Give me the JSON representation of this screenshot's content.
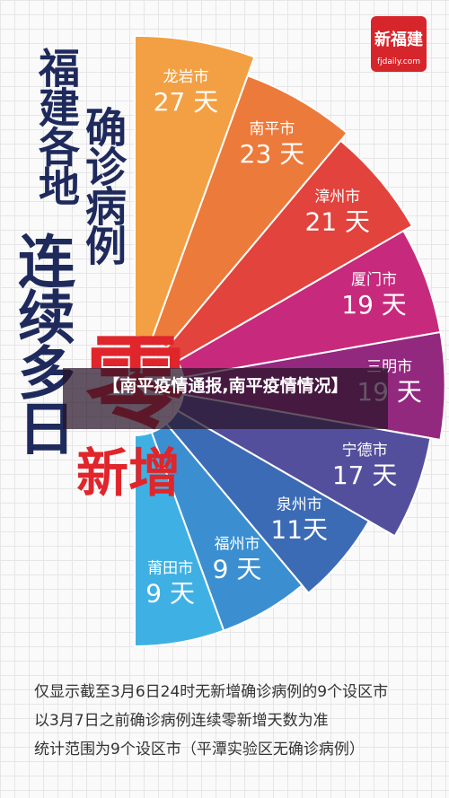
{
  "chart_data": {
    "type": "radial-bar",
    "headline": [
      "福建各地",
      "确诊病例",
      "连续多日"
    ],
    "highlight": "零",
    "highlight_tail": "新增",
    "categories": [
      "龙岩市",
      "南平市",
      "漳州市",
      "厦门市",
      "三明市",
      "宁德市",
      "泉州市",
      "福州市",
      "莆田市"
    ],
    "values": [
      27,
      23,
      21,
      19,
      19,
      17,
      11,
      9,
      9
    ],
    "value_labels": [
      "27 天",
      "23 天",
      "21 天",
      "19 天",
      "19 天",
      "17 天",
      "11天",
      "9 天",
      "9 天"
    ],
    "colors": [
      "#f2a043",
      "#ec7a3a",
      "#e2433c",
      "#c72a7c",
      "#93287f",
      "#544f9c",
      "#3c6bb5",
      "#3b8fd0",
      "#3fb0e3"
    ],
    "notes": [
      "仅显示截至3月6日24时无新增确诊病例的9个设区市",
      "以3月7日之前确诊病例连续零新增天数为准",
      "统计范围为9个设区市（平潭实验区无确诊病例）"
    ]
  },
  "logo": {
    "name": "新福建",
    "url": "fjdaily.com"
  },
  "banner": "【南平疫情通报,南平疫情情况】"
}
